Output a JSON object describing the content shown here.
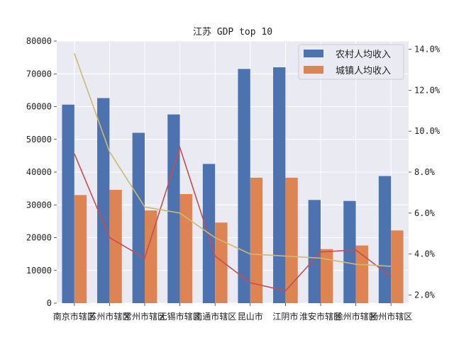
{
  "chart_data": {
    "type": "bar",
    "title": "江苏 GDP top 10",
    "categories": [
      "南京市辖区",
      "苏州市辖区",
      "常州市辖区",
      "无锡市辖区",
      "南通市辖区",
      "昆山市",
      "江阴市",
      "淮安市辖区",
      "徐州市辖区",
      "扬州市辖区"
    ],
    "series": [
      {
        "name": "农村人均收入",
        "axis": "left",
        "values": [
          60600,
          62600,
          52000,
          57600,
          42500,
          71500,
          72000,
          31500,
          31200,
          38800
        ],
        "color": "#4C72B0"
      },
      {
        "name": "城镇人均收入",
        "axis": "left",
        "values": [
          33000,
          34600,
          28300,
          33300,
          24600,
          38300,
          38300,
          16500,
          17600,
          22200
        ],
        "color": "#DD8452"
      }
    ],
    "line_series": [
      {
        "axis": "right",
        "values": [
          8.9,
          4.8,
          3.8,
          9.2,
          3.9,
          2.6,
          2.2,
          4.1,
          4.2,
          2.9
        ],
        "color": "#C44E52"
      },
      {
        "axis": "right",
        "values": [
          13.8,
          9.0,
          6.3,
          6.0,
          4.8,
          4.0,
          3.9,
          3.8,
          3.5,
          3.4
        ],
        "color": "#CCB974"
      }
    ],
    "ylim": [
      0,
      80000
    ],
    "yticks": [
      "0",
      "10000",
      "20000",
      "30000",
      "40000",
      "50000",
      "60000",
      "70000",
      "80000"
    ],
    "y2lim": [
      1.6,
      14.4
    ],
    "y2ticks": [
      "2.0%",
      "4.0%",
      "6.0%",
      "8.0%",
      "10.0%",
      "12.0%",
      "14.0%"
    ],
    "grid": true,
    "legend_position": "top-right",
    "background": "#EAEAF2"
  }
}
